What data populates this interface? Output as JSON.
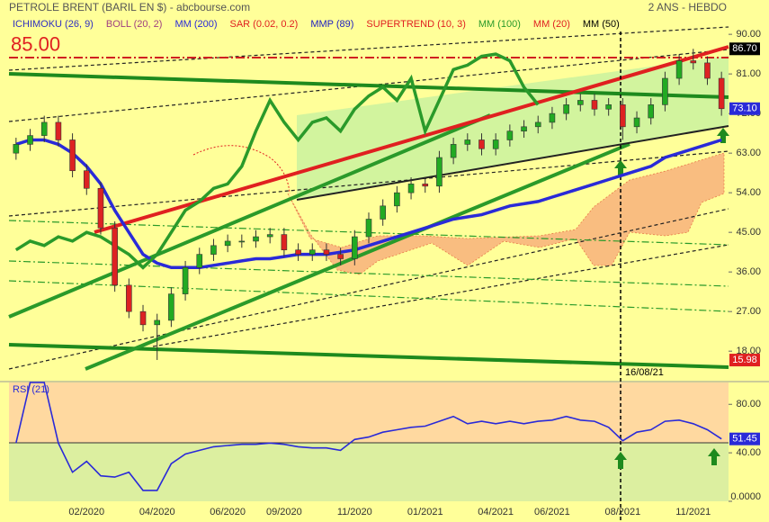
{
  "chart_data": [
    {
      "type": "candlestick",
      "title": "PETROLE BRENT (BARIL EN $) - abcbourse.com",
      "subtitle": "2 ANS - HEBDO",
      "annotation": "16/08/21",
      "categories": [
        null,
        null,
        null,
        null,
        null,
        "02/2020",
        null,
        null,
        null,
        null,
        "04/2020",
        null,
        null,
        null,
        null,
        "06/2020",
        null,
        null,
        null,
        "09/2020",
        null,
        null,
        null,
        null,
        "11/2020",
        null,
        null,
        null,
        null,
        "01/2021",
        null,
        null,
        null,
        null,
        "04/2021",
        null,
        null,
        null,
        "06/2021",
        null,
        null,
        null,
        null,
        "08/2021",
        null,
        null,
        null,
        null,
        "11/2021",
        null,
        null
      ],
      "ohlc": [
        [
          63,
          66.5,
          61.5,
          65
        ],
        [
          65,
          68.5,
          63.5,
          67
        ],
        [
          67,
          71.5,
          65.5,
          70
        ],
        [
          70,
          71.5,
          64.5,
          66
        ],
        [
          66,
          67.5,
          57.5,
          59
        ],
        [
          59,
          60.5,
          53.5,
          55
        ],
        [
          55,
          56.5,
          44.5,
          46
        ],
        [
          46,
          47.5,
          31.5,
          33
        ],
        [
          33,
          34.5,
          25.5,
          27
        ],
        [
          27,
          28.5,
          22.5,
          24
        ],
        [
          24,
          26.5,
          16,
          25
        ],
        [
          25,
          32.5,
          23.5,
          31
        ],
        [
          31,
          38.5,
          29.5,
          37
        ],
        [
          37,
          41.5,
          35.5,
          40
        ],
        [
          40,
          43.5,
          38.5,
          42
        ],
        [
          42,
          44.5,
          40.5,
          43
        ],
        [
          43,
          44.5,
          41.5,
          43
        ],
        [
          43,
          45.5,
          41.5,
          44
        ],
        [
          44,
          46,
          42.5,
          44.5
        ],
        [
          44.5,
          46,
          39.5,
          41
        ],
        [
          41,
          42.5,
          38.5,
          40
        ],
        [
          40,
          42.5,
          38.5,
          41
        ],
        [
          41,
          42.5,
          38.5,
          40
        ],
        [
          40,
          41.5,
          37.5,
          39
        ],
        [
          39,
          45.5,
          37.5,
          44
        ],
        [
          44,
          49.5,
          42.5,
          48
        ],
        [
          48,
          52.5,
          46.5,
          51
        ],
        [
          51,
          55.5,
          49.5,
          54
        ],
        [
          54,
          57.5,
          52.5,
          56
        ],
        [
          56,
          57.5,
          54,
          55.5
        ],
        [
          55.5,
          63.5,
          54,
          62
        ],
        [
          62,
          66.5,
          60.5,
          65
        ],
        [
          65,
          67.5,
          63.5,
          66
        ],
        [
          66,
          67.5,
          62.5,
          64
        ],
        [
          64,
          67.5,
          62.5,
          66
        ],
        [
          66,
          69.5,
          64.5,
          68
        ],
        [
          68,
          70.5,
          66.5,
          69
        ],
        [
          69,
          71.5,
          67.5,
          70
        ],
        [
          70,
          73.5,
          68.5,
          72
        ],
        [
          72,
          75.5,
          70.5,
          74
        ],
        [
          74,
          76.5,
          72.5,
          75
        ],
        [
          75,
          76.5,
          71.5,
          73
        ],
        [
          73,
          75.5,
          71.5,
          74
        ],
        [
          74,
          75.5,
          66,
          69
        ],
        [
          69,
          72.5,
          67.5,
          71
        ],
        [
          71,
          75.5,
          69.5,
          74
        ],
        [
          74,
          81.5,
          72.5,
          80
        ],
        [
          80,
          85.5,
          78.5,
          84
        ],
        [
          84,
          86.7,
          82,
          83.5
        ],
        [
          83.5,
          85,
          78.5,
          80
        ],
        [
          80,
          81.5,
          71.5,
          73.1
        ]
      ],
      "up_color": "#22aa22",
      "down_color": "#dd2222",
      "series": [
        {
          "name": "ICHIMOKU (26, 9)",
          "color": "#3030c0"
        },
        {
          "name": "BOLL (20, 2)",
          "color": "#a04080"
        },
        {
          "name": "MM (200)",
          "color": "#2a2ad8",
          "values": [
            65,
            66,
            66,
            65,
            63,
            60,
            56,
            50,
            45,
            40,
            38,
            37,
            37,
            37,
            37.5,
            38,
            38.5,
            39,
            39,
            39.5,
            40,
            40,
            40,
            40.5,
            41,
            42,
            43,
            44,
            45,
            46,
            47,
            48,
            48.5,
            49,
            50,
            51,
            51.5,
            52,
            53,
            54,
            55,
            56,
            57,
            58,
            59,
            60,
            62,
            63,
            64,
            65,
            66
          ]
        },
        {
          "name": "SAR (0.02, 0.2)",
          "color": "#e02020"
        },
        {
          "name": "MMP (89)",
          "color": "#2020c0"
        },
        {
          "name": "SUPERTREND (10, 3)",
          "color": "#e02020"
        },
        {
          "name": "MM (100)",
          "color": "#2a9a2a",
          "values": [
            41,
            43,
            42,
            44,
            43,
            45,
            44,
            42,
            40,
            37,
            40,
            45,
            50,
            52,
            55,
            56,
            60,
            68,
            75,
            70,
            66,
            70,
            71,
            68,
            73,
            76,
            78,
            75,
            80,
            68,
            75,
            82,
            83,
            85,
            85.5,
            84,
            78,
            74,
            null,
            null,
            null,
            null,
            null,
            null,
            null,
            null,
            null,
            null,
            null,
            null,
            null
          ]
        },
        {
          "name": "MM (20)",
          "color": "#e02020"
        },
        {
          "name": "MM (50)",
          "color": "#000000"
        }
      ],
      "ylim": [
        11.9,
        97.8
      ],
      "yticks": [
        {
          "value": 90,
          "label": "90.00"
        },
        {
          "value": 81,
          "label": "81.00"
        },
        {
          "value": 72,
          "label": "72.00"
        },
        {
          "value": 63,
          "label": "63.00"
        },
        {
          "value": 54,
          "label": "54.00"
        },
        {
          "value": 45,
          "label": "45.00"
        },
        {
          "value": 36,
          "label": "36.00"
        },
        {
          "value": 27,
          "label": "27.00"
        },
        {
          "value": 18,
          "label": "18.00"
        }
      ],
      "level_label": {
        "value": 85,
        "label": "85.00"
      },
      "price_labels": [
        {
          "value": 86.7,
          "label": "86.70",
          "color": "#000000"
        },
        {
          "value": 73.1,
          "label": "73.10",
          "color": "#2a2ad8"
        },
        {
          "value": 15.98,
          "label": "15.98",
          "color": "#e02020"
        }
      ]
    },
    {
      "type": "line",
      "title": "RSI (21)",
      "color": "#2a2ad8",
      "values": [
        48,
        98,
        98,
        48,
        24,
        33,
        21,
        20,
        24,
        9,
        9,
        31,
        39,
        42,
        45,
        46,
        47,
        47,
        48,
        47,
        45,
        44,
        44,
        42,
        51,
        53,
        57,
        59,
        61,
        62,
        66,
        70,
        64,
        66,
        64,
        66,
        64,
        66,
        67,
        70,
        67,
        66,
        61,
        50,
        57,
        59,
        66,
        67,
        64,
        59,
        51.45
      ],
      "ylim": [
        0,
        98
      ],
      "yticks": [
        {
          "value": 80,
          "label": "80.00"
        },
        {
          "value": 40,
          "label": "40.00"
        },
        {
          "value": 0,
          "label": "0.0000"
        }
      ]
    }
  ]
}
